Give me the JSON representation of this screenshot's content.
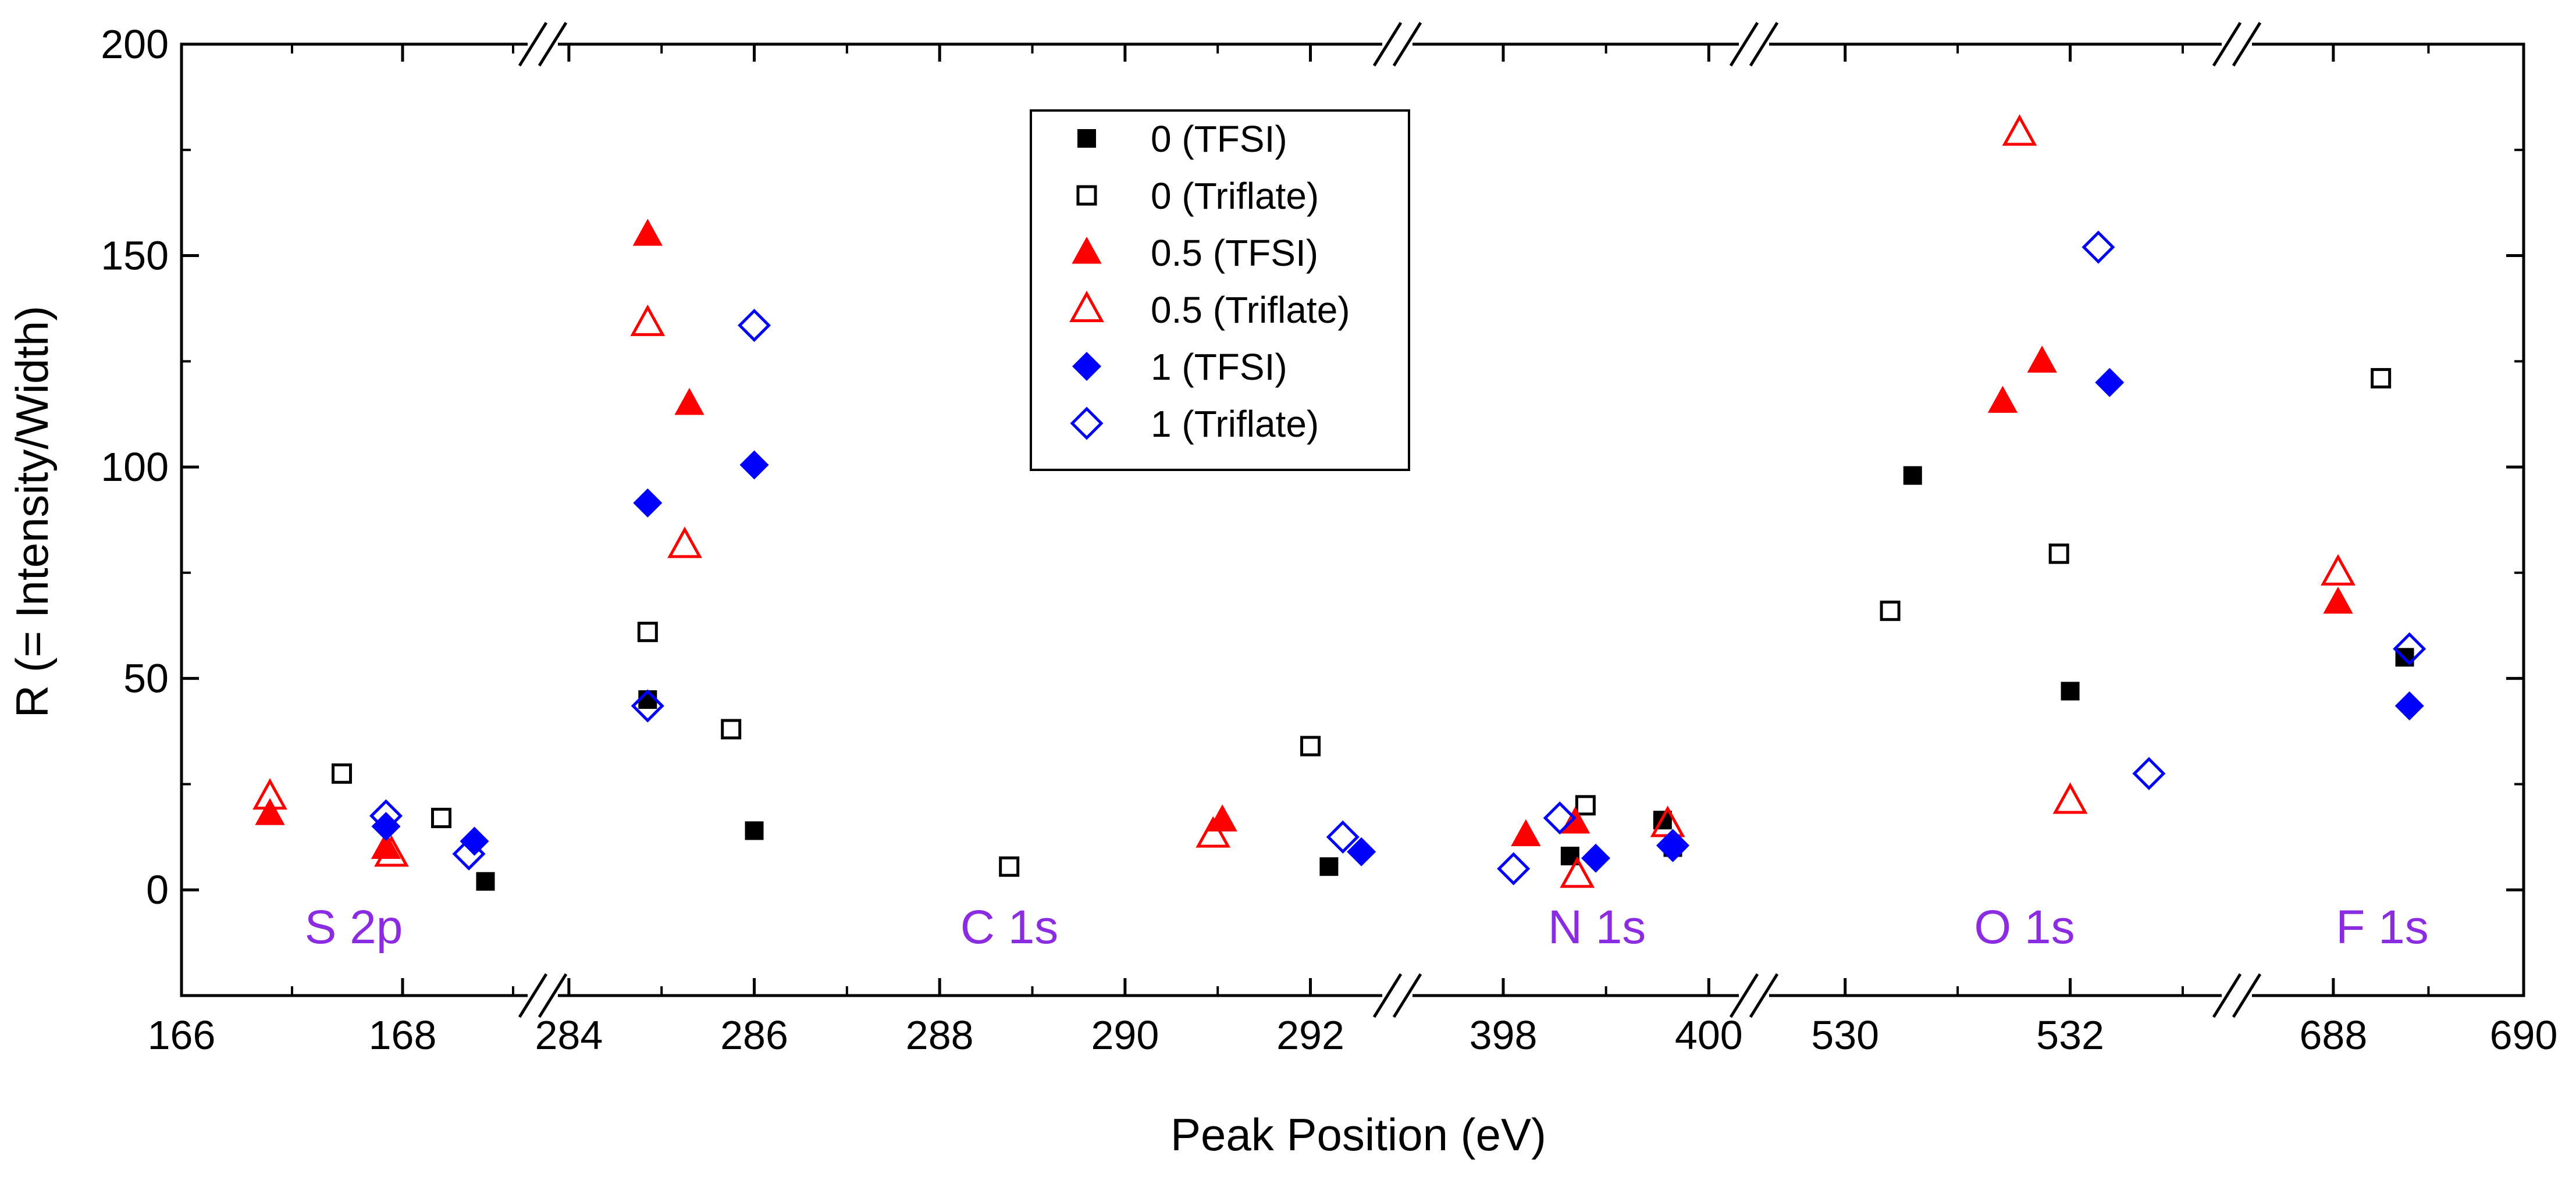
{
  "chart_data": {
    "type": "scatter",
    "xlabel": "Peak Position (eV)",
    "ylabel": "R (= Intensity/Width)",
    "ylim": [
      -25,
      200
    ],
    "y_ticks": [
      0,
      50,
      100,
      150,
      200
    ],
    "grid": false,
    "legend_placement": "top-center",
    "colors": {
      "tfsi_black": "#000000",
      "red": "#ff0000",
      "blue": "#0000ff",
      "region_label": "#8B2BE2"
    },
    "segments": [
      {
        "label": "S 2p",
        "xlim": [
          166,
          169.2
        ],
        "ticks": [
          166,
          168
        ]
      },
      {
        "label": "C 1s",
        "xlim": [
          283.8,
          292.8
        ],
        "ticks": [
          284,
          286,
          288,
          290,
          292
        ]
      },
      {
        "label": "N 1s",
        "xlim": [
          397.1,
          400.1
        ],
        "ticks": [
          398,
          400
        ]
      },
      {
        "label": "O 1s",
        "xlim": [
          529.5,
          533.3
        ],
        "ticks": [
          530,
          532
        ]
      },
      {
        "label": "F 1s",
        "xlim": [
          687.2,
          690
        ],
        "ticks": [
          688,
          690
        ]
      }
    ],
    "series": [
      {
        "name": "0 (TFSI)",
        "marker": "square",
        "filled": true,
        "color": "#000000",
        "points": [
          [
            168.75,
            2
          ],
          [
            284.85,
            45
          ],
          [
            286,
            14
          ],
          [
            292.2,
            5.5
          ],
          [
            398.65,
            8
          ],
          [
            399.55,
            16.5
          ],
          [
            399.65,
            10
          ],
          [
            530.6,
            98
          ],
          [
            532,
            47
          ],
          [
            688.75,
            55
          ]
        ]
      },
      {
        "name": "0 (Triflate)",
        "marker": "square",
        "filled": false,
        "color": "#000000",
        "points": [
          [
            167.45,
            27.5
          ],
          [
            168.35,
            17
          ],
          [
            284.85,
            61
          ],
          [
            285.75,
            38
          ],
          [
            288.75,
            5.5
          ],
          [
            292,
            34
          ],
          [
            398.8,
            20
          ],
          [
            530.4,
            66
          ],
          [
            531.9,
            79.5
          ],
          [
            688.5,
            121
          ]
        ]
      },
      {
        "name": "0.5 (TFSI)",
        "marker": "triangle",
        "filled": true,
        "color": "#ff0000",
        "points": [
          [
            166.8,
            18
          ],
          [
            167.85,
            10
          ],
          [
            284.85,
            155
          ],
          [
            285.3,
            115
          ],
          [
            291.05,
            16.5
          ],
          [
            398.22,
            13
          ],
          [
            398.7,
            16
          ],
          [
            531.4,
            115.5
          ],
          [
            531.75,
            125
          ],
          [
            688.05,
            68
          ]
        ]
      },
      {
        "name": "0.5 (Triflate)",
        "marker": "triangle",
        "filled": false,
        "color": "#ff0000",
        "points": [
          [
            166.8,
            22
          ],
          [
            167.9,
            8.5
          ],
          [
            284.85,
            134
          ],
          [
            285.25,
            81.5
          ],
          [
            290.95,
            13
          ],
          [
            398.72,
            3.5
          ],
          [
            399.6,
            15.5
          ],
          [
            531.55,
            179
          ],
          [
            532,
            21
          ],
          [
            688.05,
            75
          ]
        ]
      },
      {
        "name": "1 (TFSI)",
        "marker": "diamond",
        "filled": true,
        "color": "#0000ff",
        "points": [
          [
            167.85,
            15
          ],
          [
            168.65,
            11.5
          ],
          [
            284.85,
            91.5
          ],
          [
            286,
            100.5
          ],
          [
            292.55,
            9
          ],
          [
            398.9,
            7.5
          ],
          [
            399.65,
            10
          ],
          [
            532.35,
            120
          ],
          [
            688.8,
            43.5
          ]
        ]
      },
      {
        "name": "1 (Triflate)",
        "marker": "diamond",
        "filled": false,
        "color": "#0000ff",
        "points": [
          [
            167.85,
            17.5
          ],
          [
            168.6,
            8.5
          ],
          [
            284.85,
            43.5
          ],
          [
            286,
            133.5
          ],
          [
            292.35,
            12.5
          ],
          [
            398.1,
            5
          ],
          [
            398.55,
            17
          ],
          [
            399.65,
            10.5
          ],
          [
            532.25,
            152
          ],
          [
            532.7,
            27.5
          ],
          [
            688.8,
            57
          ]
        ]
      }
    ]
  }
}
